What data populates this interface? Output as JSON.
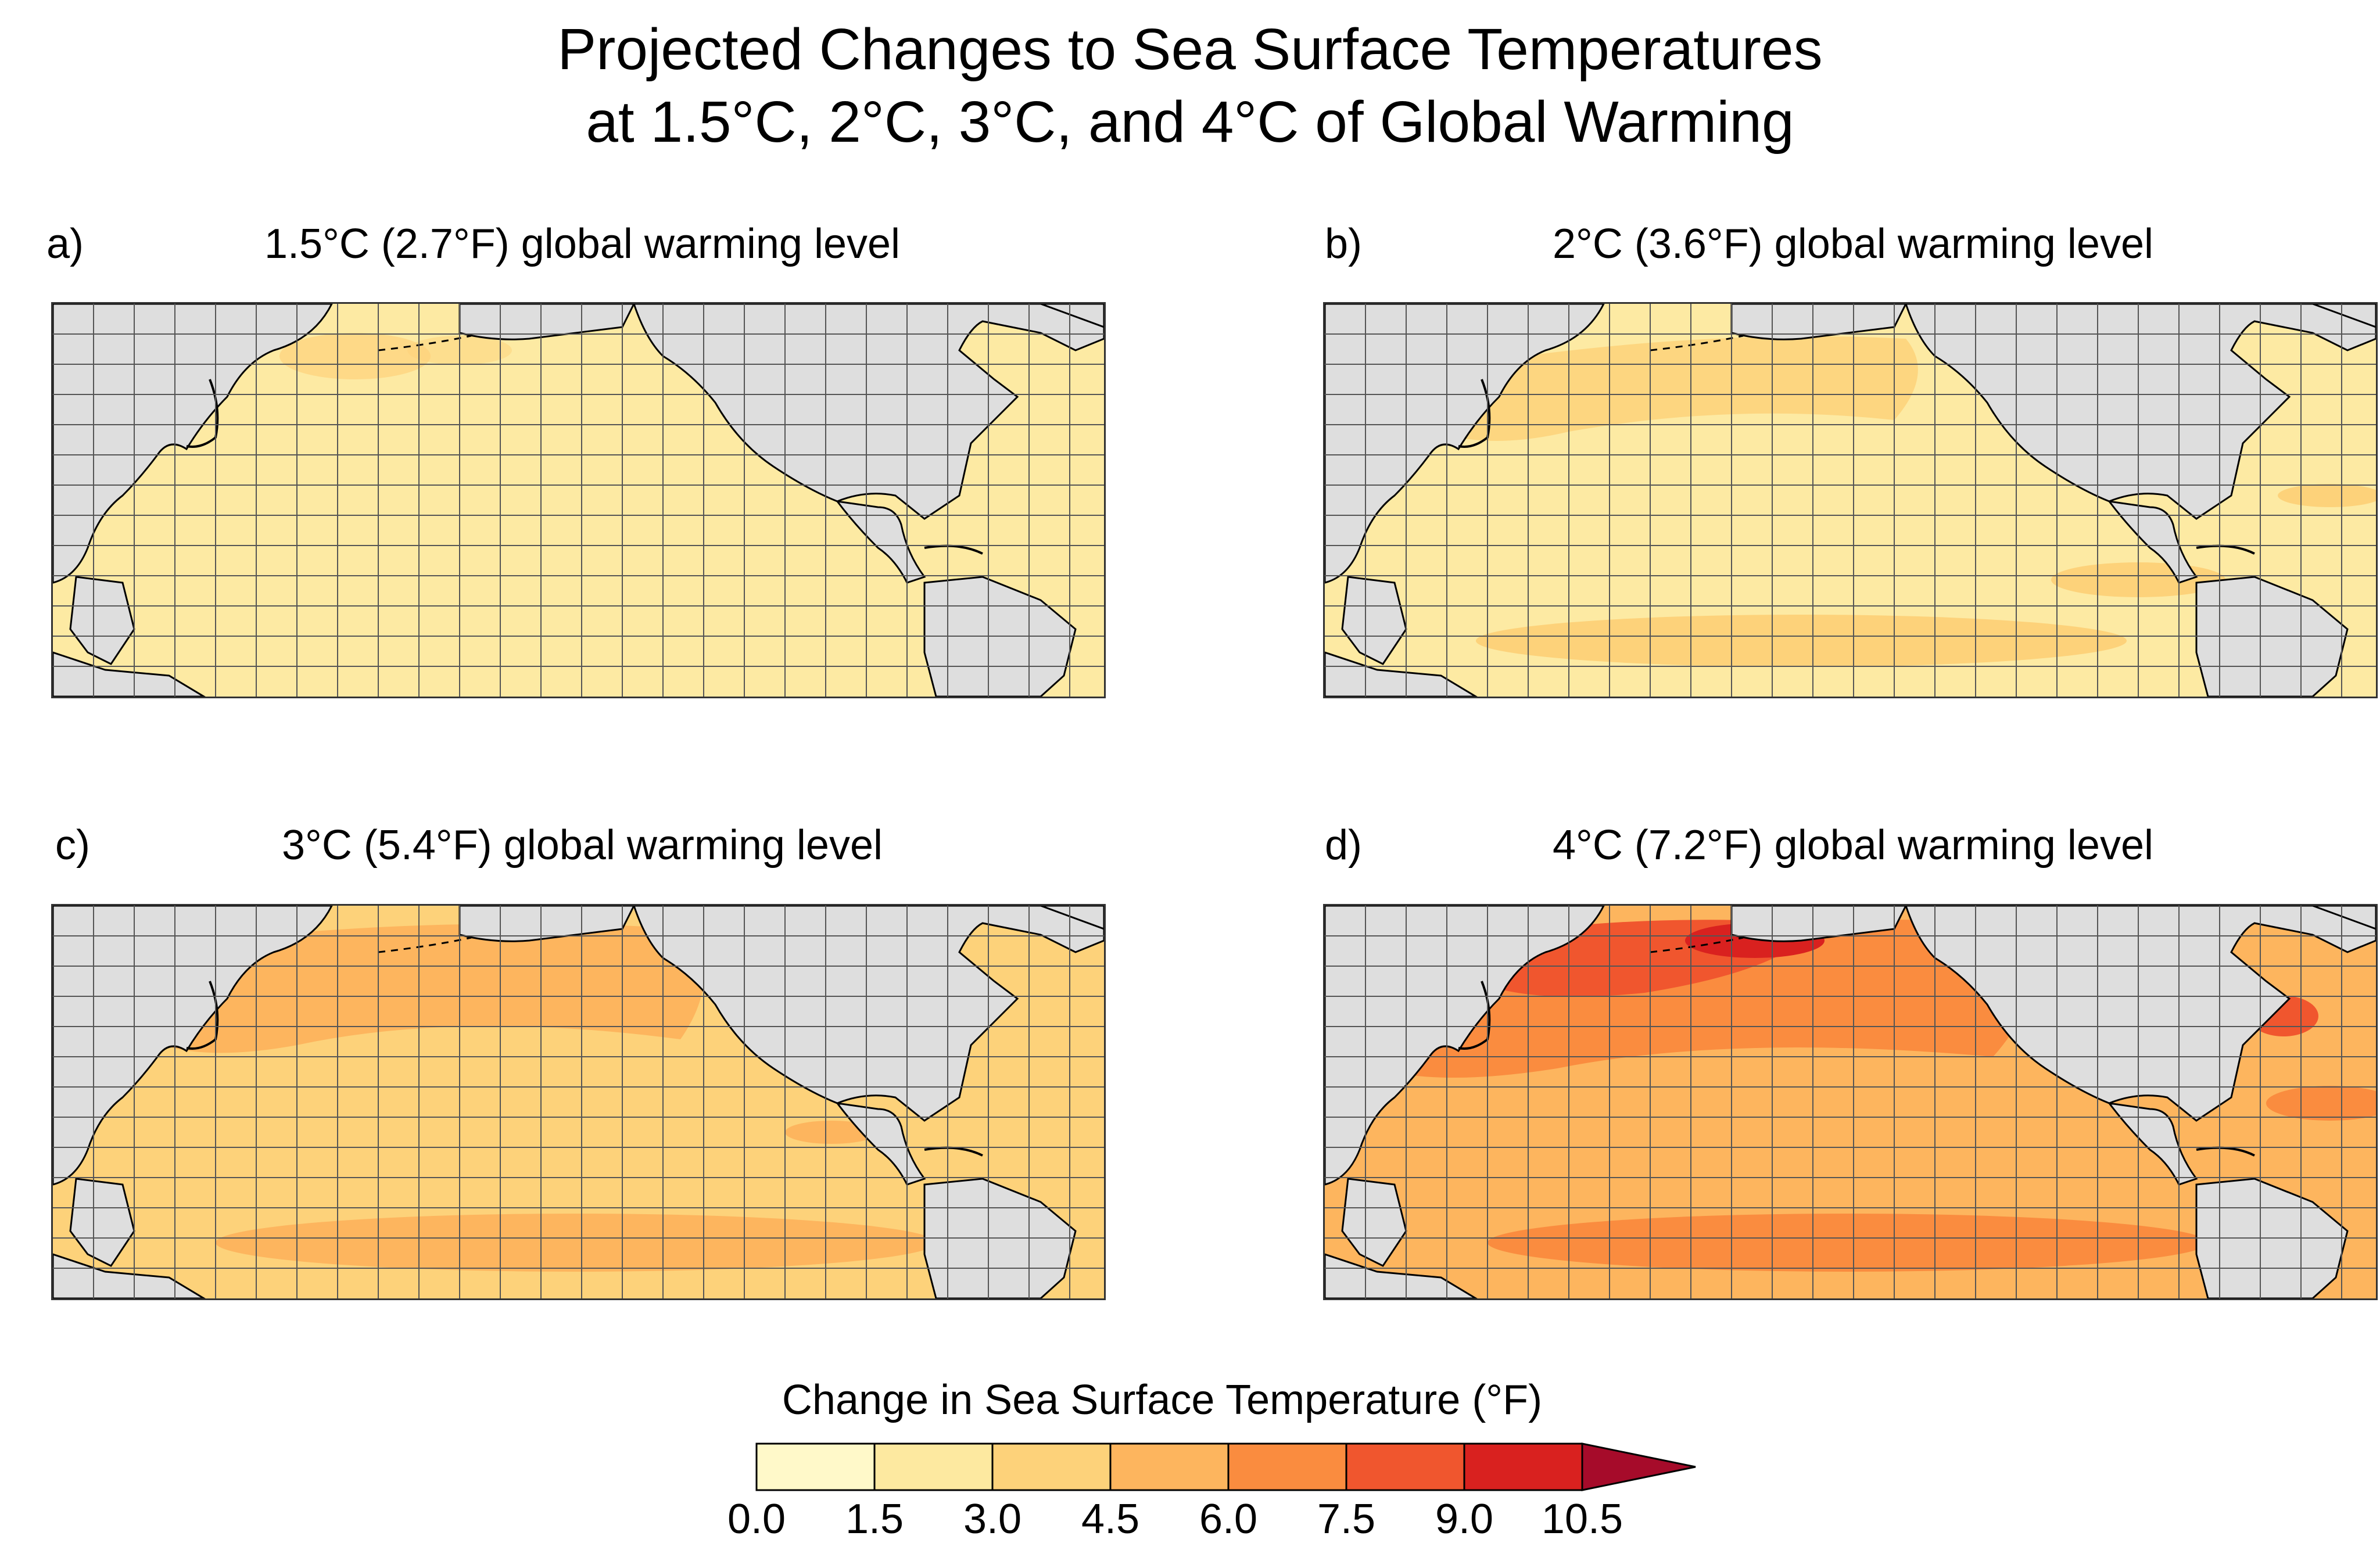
{
  "title": {
    "line1": "Projected Changes to Sea Surface Temperatures",
    "line2": "at 1.5°C, 2°C, 3°C, and 4°C of Global Warming"
  },
  "panels": [
    {
      "letter": "a)",
      "title": "1.5°C (2.7°F) global warming level"
    },
    {
      "letter": "b)",
      "title": "2°C (3.6°F) global warming level"
    },
    {
      "letter": "c)",
      "title": "3°C (5.4°F) global warming level"
    },
    {
      "letter": "d)",
      "title": "4°C (7.2°F) global warming level"
    }
  ],
  "legend": {
    "title": "Change in Sea Surface Temperature (°F)",
    "ticks": [
      "0.0",
      "1.5",
      "3.0",
      "4.5",
      "6.0",
      "7.5",
      "9.0",
      "10.5"
    ],
    "colors": [
      "#fff9c9",
      "#fde9a0",
      "#fdd27a",
      "#fdb55e",
      "#fa8c3f",
      "#f0562e",
      "#d9211f",
      "#a60b2a"
    ]
  },
  "colors": {
    "land": "#dedede",
    "grid": "#555555",
    "coast": "#000000"
  }
}
